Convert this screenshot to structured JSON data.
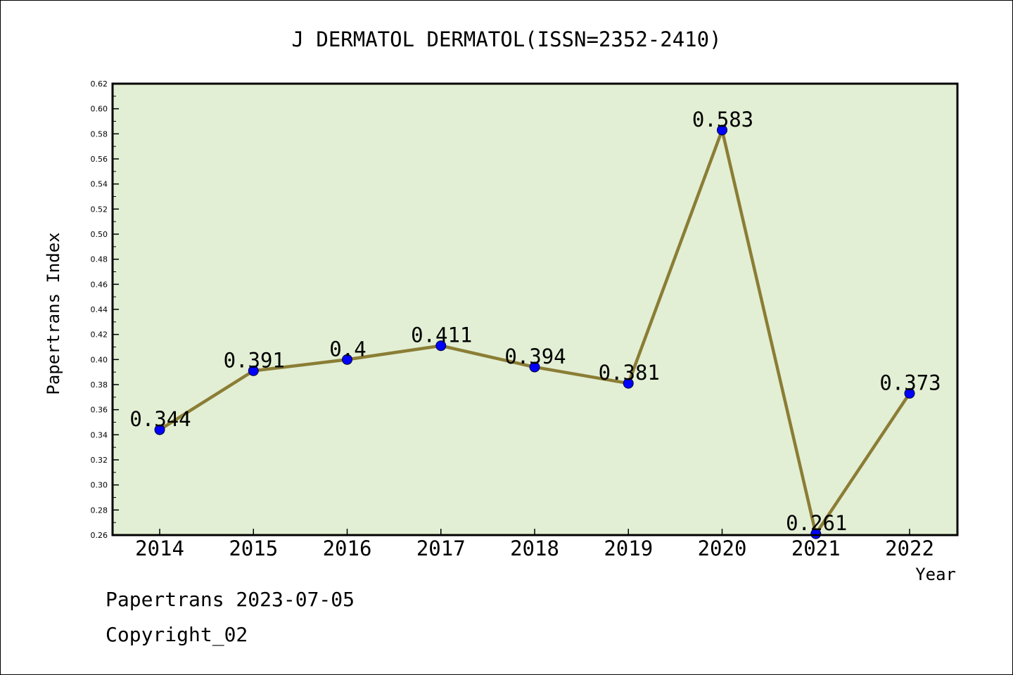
{
  "chart_data": {
    "type": "line",
    "title": "J DERMATOL DERMATOL(ISSN=2352-2410)",
    "xlabel": "Year",
    "ylabel": "Papertrans Index",
    "categories": [
      "2014",
      "2015",
      "2016",
      "2017",
      "2018",
      "2019",
      "2020",
      "2021",
      "2022"
    ],
    "series": [
      {
        "values": [
          0.344,
          0.391,
          0.4,
          0.411,
          0.394,
          0.381,
          0.583,
          0.261,
          0.373
        ],
        "labels": [
          "0.344",
          "0.391",
          "0.4",
          "0.411",
          "0.394",
          "0.381",
          "0.583",
          "0.261",
          "0.373"
        ]
      }
    ],
    "ylim": [
      0.26,
      0.62
    ],
    "yticks": [
      "0.26",
      "0.28",
      "0.30",
      "0.32",
      "0.34",
      "0.36",
      "0.38",
      "0.40",
      "0.42",
      "0.44",
      "0.46",
      "0.48",
      "0.50",
      "0.52",
      "0.54",
      "0.56",
      "0.58",
      "0.60",
      "0.62"
    ],
    "grid": false,
    "colors": {
      "plot_background": "#e2efd4",
      "line": "#8b7d35",
      "marker": "#0000ff"
    }
  },
  "footer": {
    "line1": "Papertrans 2023-07-05",
    "line2": "Copyright_02"
  }
}
